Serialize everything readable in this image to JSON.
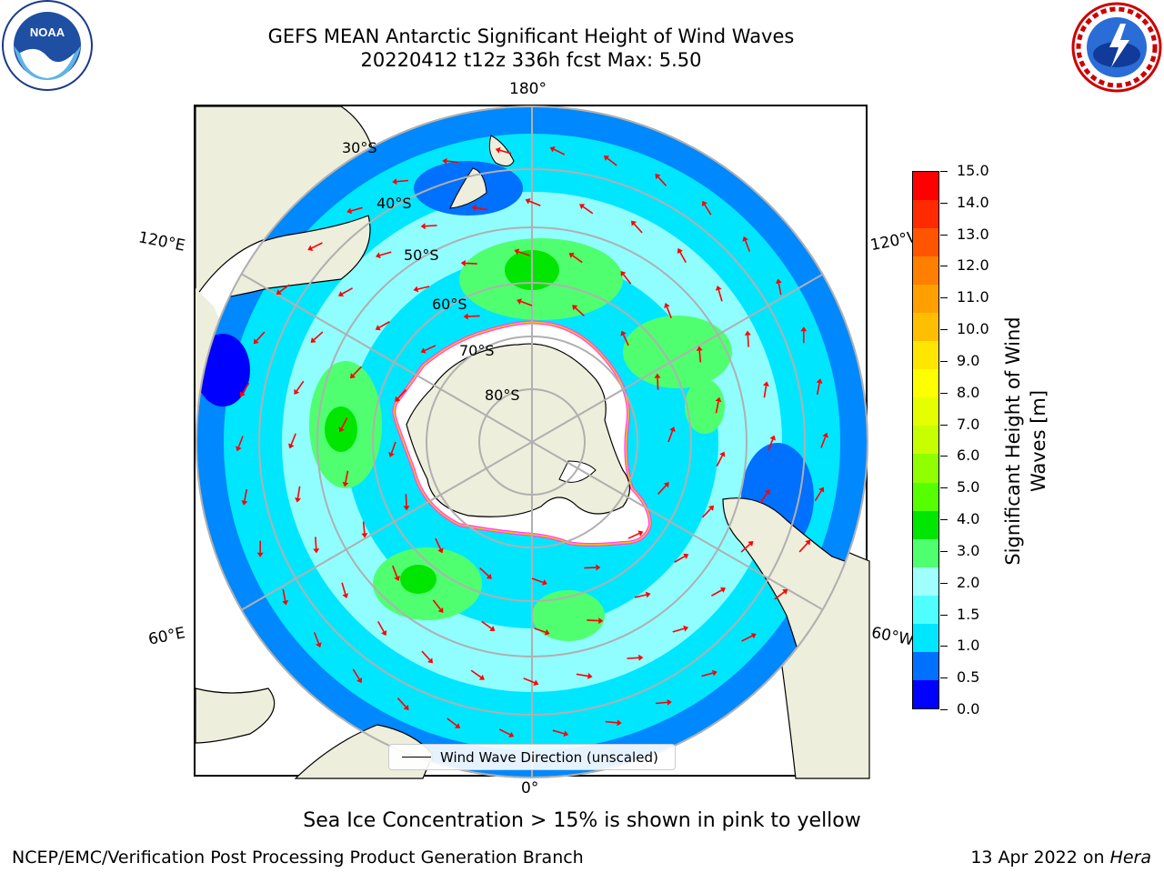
{
  "title": {
    "line1": "GEFS MEAN Antarctic Significant Height of Wind Waves",
    "line2": "20220412 t12z 336h fcst   Max: 5.50"
  },
  "logos": {
    "left": {
      "icon": "noaa-logo",
      "text": "NOAA"
    },
    "right": {
      "icon": "national-weather-service-logo"
    }
  },
  "map": {
    "projection": "south-polar-stereographic",
    "longitude_labels": {
      "top": "180°",
      "bottom": "0°",
      "upper_left": "120°E",
      "lower_left": "60°E",
      "upper_right": "120°W",
      "lower_right": "60°W"
    },
    "latitude_labels": [
      "30°S",
      "40°S",
      "50°S",
      "60°S",
      "70°S",
      "80°S"
    ],
    "colors": {
      "land": "#eeeedc",
      "sea_ice_edge": "#ff44ff",
      "arrow": "#ff0000",
      "grid": "#b0b0b0"
    }
  },
  "legend": {
    "label": "Wind Wave Direction (unscaled)"
  },
  "colorbar": {
    "title_line1": "Significant Height of Wind",
    "title_line2": "Waves [m]",
    "tick_labels": [
      "15.0",
      "14.0",
      "13.0",
      "12.0",
      "11.0",
      "10.0",
      "9.0",
      "8.0",
      "7.0",
      "6.0",
      "5.0",
      "4.0",
      "3.0",
      "2.0",
      "1.5",
      "1.0",
      "0.5",
      "0.0"
    ],
    "colors_top_to_bottom": [
      "#ff0000",
      "#ff2a00",
      "#ff5500",
      "#ff7f00",
      "#ff9f00",
      "#ffbf00",
      "#ffe600",
      "#ffff00",
      "#e6ff00",
      "#c8ff00",
      "#90ff00",
      "#55ff00",
      "#00e600",
      "#50ff70",
      "#a0ffff",
      "#50ffff",
      "#00e6ff",
      "#0070ff",
      "#0000ff"
    ]
  },
  "footnote": "Sea Ice Concentration > 15% is shown in pink to yellow",
  "footer": {
    "left": "NCEP/EMC/Verification Post Processing Product Generation Branch",
    "right_prefix": "13 Apr 2022 on ",
    "right_italic": "Hera"
  }
}
